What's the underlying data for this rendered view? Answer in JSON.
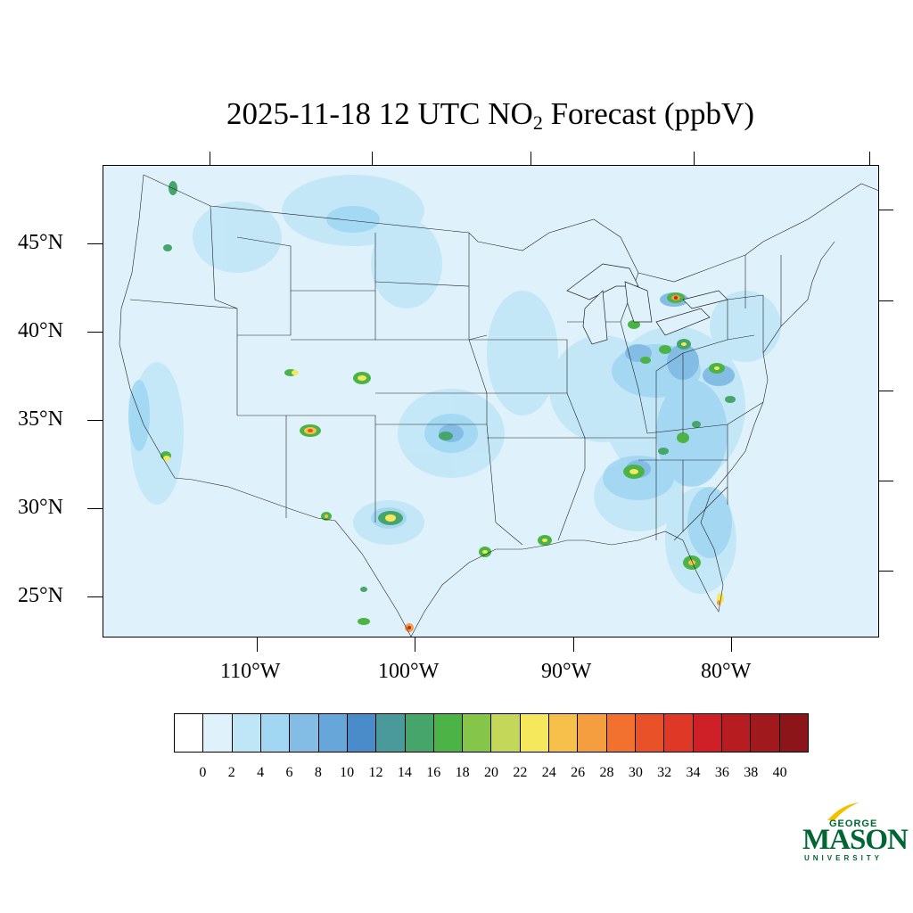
{
  "title": {
    "prefix": "2025-11-18 12 UTC NO",
    "subscript": "2",
    "suffix": " Forecast (ppbV)"
  },
  "map": {
    "region": "Contiguous United States",
    "variable": "NO2",
    "units": "ppbV",
    "lat_labels": [
      "45°N",
      "40°N",
      "35°N",
      "30°N",
      "25°N"
    ],
    "lon_labels": [
      "110°W",
      "100°W",
      "90°W",
      "80°W"
    ],
    "background_color": "#dff2fb"
  },
  "colorbar": {
    "colors": [
      "#ffffff",
      "#dff2fb",
      "#bfe6f7",
      "#a1d7f2",
      "#83bde5",
      "#67a6d9",
      "#4a8cca",
      "#4a9a9c",
      "#45a56b",
      "#4cb346",
      "#85c54a",
      "#c4d758",
      "#f6e85c",
      "#f7c04a",
      "#f59e3f",
      "#f2712e",
      "#e95129",
      "#df3826",
      "#d02027",
      "#b71c20",
      "#a0191c",
      "#8b1518"
    ],
    "labels": [
      "0",
      "2",
      "4",
      "6",
      "8",
      "10",
      "12",
      "14",
      "16",
      "18",
      "20",
      "22",
      "24",
      "26",
      "28",
      "30",
      "32",
      "34",
      "36",
      "38",
      "40"
    ]
  },
  "logo": {
    "line1": "GEORGE",
    "line2": "MASON",
    "line3": "UNIVERSITY",
    "color": "#006633"
  }
}
